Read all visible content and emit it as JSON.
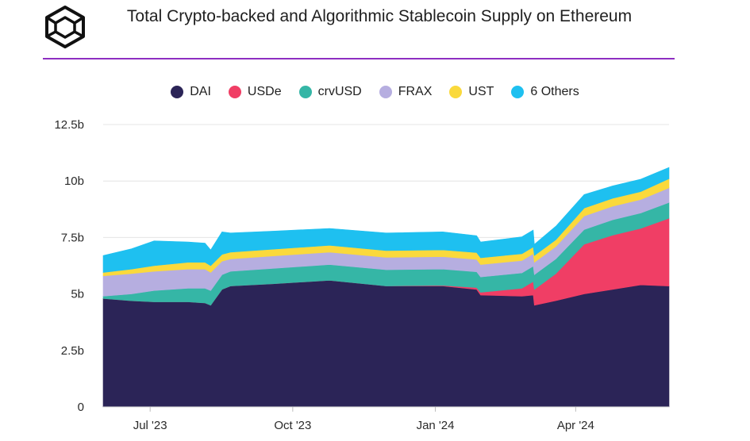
{
  "header": {
    "title": "Total Crypto-backed and Algorithmic Stablecoin Supply on Ethereum",
    "logo_icon": "cube-logo-icon"
  },
  "colors": {
    "DAI": "#2b2457",
    "USDe": "#f03e65",
    "crvUSD": "#35b6a6",
    "FRAX": "#b6aee0",
    "UST": "#fad93c",
    "6 Others": "#1ec0f0",
    "accent": "#8e2fc1"
  },
  "chart_data": {
    "type": "area",
    "stacked": true,
    "title": "Total Crypto-backed and Algorithmic Stablecoin Supply on Ethereum",
    "xlabel": "",
    "ylabel": "",
    "ylim": [
      0,
      12.5
    ],
    "y_unit": "b",
    "y_ticks": [
      "0",
      "2.5b",
      "5b",
      "7.5b",
      "10b",
      "12.5b"
    ],
    "y_tick_values": [
      0,
      2.5,
      5,
      7.5,
      10,
      12.5
    ],
    "x_ticks": [
      "Jul '23",
      "Oct '23",
      "Jan '24",
      "Apr '24"
    ],
    "x_tick_positions": [
      0.083,
      0.335,
      0.587,
      0.835
    ],
    "grid": true,
    "legend_position": "top",
    "x": [
      0,
      0.05,
      0.09,
      0.15,
      0.18,
      0.19,
      0.21,
      0.225,
      0.3,
      0.4,
      0.5,
      0.6,
      0.66,
      0.667,
      0.74,
      0.76,
      0.762,
      0.8,
      0.85,
      0.9,
      0.95,
      1.0
    ],
    "series": [
      {
        "name": "DAI",
        "values": [
          4.8,
          4.7,
          4.65,
          4.65,
          4.6,
          4.5,
          5.2,
          5.35,
          5.45,
          5.6,
          5.35,
          5.35,
          5.2,
          4.95,
          4.9,
          4.95,
          4.5,
          4.7,
          5.0,
          5.2,
          5.4,
          5.35
        ]
      },
      {
        "name": "USDe",
        "values": [
          0,
          0,
          0,
          0,
          0,
          0,
          0,
          0,
          0,
          0,
          0,
          0.03,
          0.08,
          0.12,
          0.35,
          0.6,
          0.7,
          1.2,
          2.2,
          2.4,
          2.5,
          3.0
        ]
      },
      {
        "name": "crvUSD",
        "values": [
          0.1,
          0.3,
          0.5,
          0.6,
          0.65,
          0.65,
          0.65,
          0.65,
          0.68,
          0.7,
          0.72,
          0.72,
          0.7,
          0.68,
          0.68,
          0.68,
          0.65,
          0.65,
          0.65,
          0.68,
          0.68,
          0.7
        ]
      },
      {
        "name": "FRAX",
        "values": [
          0.9,
          0.9,
          0.85,
          0.85,
          0.85,
          0.8,
          0.6,
          0.55,
          0.55,
          0.55,
          0.55,
          0.55,
          0.55,
          0.55,
          0.55,
          0.55,
          0.55,
          0.55,
          0.6,
          0.6,
          0.6,
          0.65
        ]
      },
      {
        "name": "UST",
        "values": [
          0.15,
          0.2,
          0.25,
          0.3,
          0.3,
          0.3,
          0.3,
          0.3,
          0.3,
          0.3,
          0.3,
          0.3,
          0.3,
          0.3,
          0.3,
          0.3,
          0.3,
          0.3,
          0.35,
          0.35,
          0.35,
          0.4
        ]
      },
      {
        "name": "6 Others",
        "values": [
          0.75,
          0.9,
          1.1,
          0.9,
          0.85,
          0.7,
          1.0,
          0.85,
          0.8,
          0.75,
          0.78,
          0.8,
          0.75,
          0.7,
          0.75,
          0.75,
          0.5,
          0.6,
          0.6,
          0.55,
          0.55,
          0.5
        ]
      }
    ]
  }
}
